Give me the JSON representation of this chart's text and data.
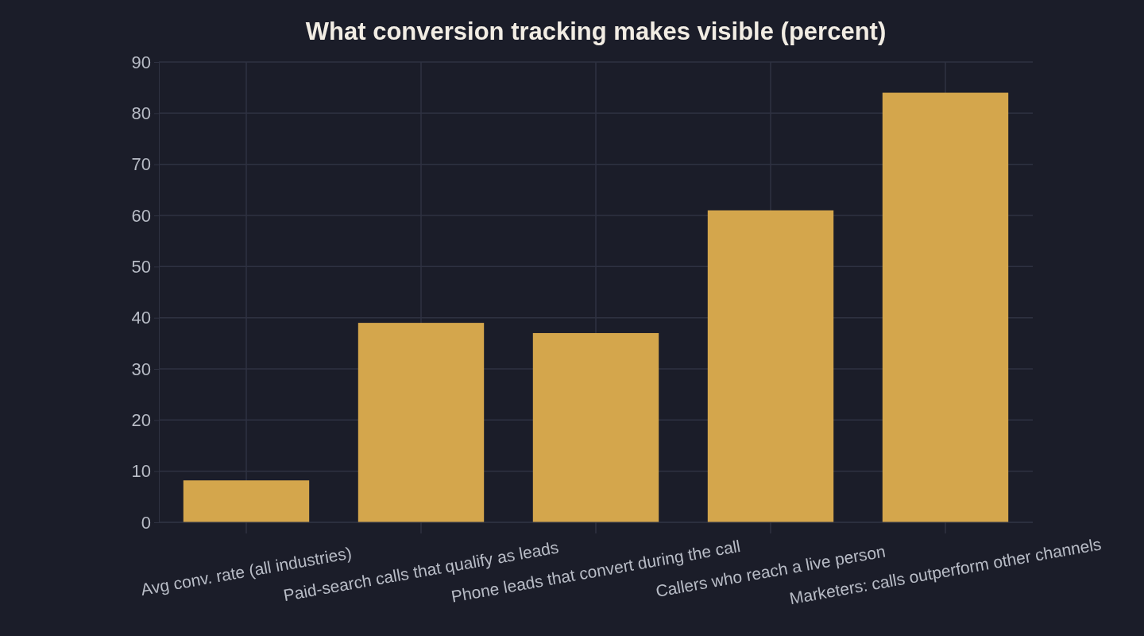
{
  "chart_data": {
    "type": "bar",
    "title": "What conversion tracking makes visible (percent)",
    "categories": [
      "Avg conv. rate (all industries)",
      "Paid-search calls that qualify as leads",
      "Phone leads that convert during the call",
      "Callers who reach a live person",
      "Marketers: calls outperform other channels"
    ],
    "values": [
      8.2,
      39,
      37,
      61,
      84
    ],
    "color": "#d4a64c",
    "ylim": [
      0,
      90
    ],
    "yticks": [
      0,
      10,
      20,
      30,
      40,
      50,
      60,
      70,
      80,
      90
    ],
    "grid": true
  }
}
